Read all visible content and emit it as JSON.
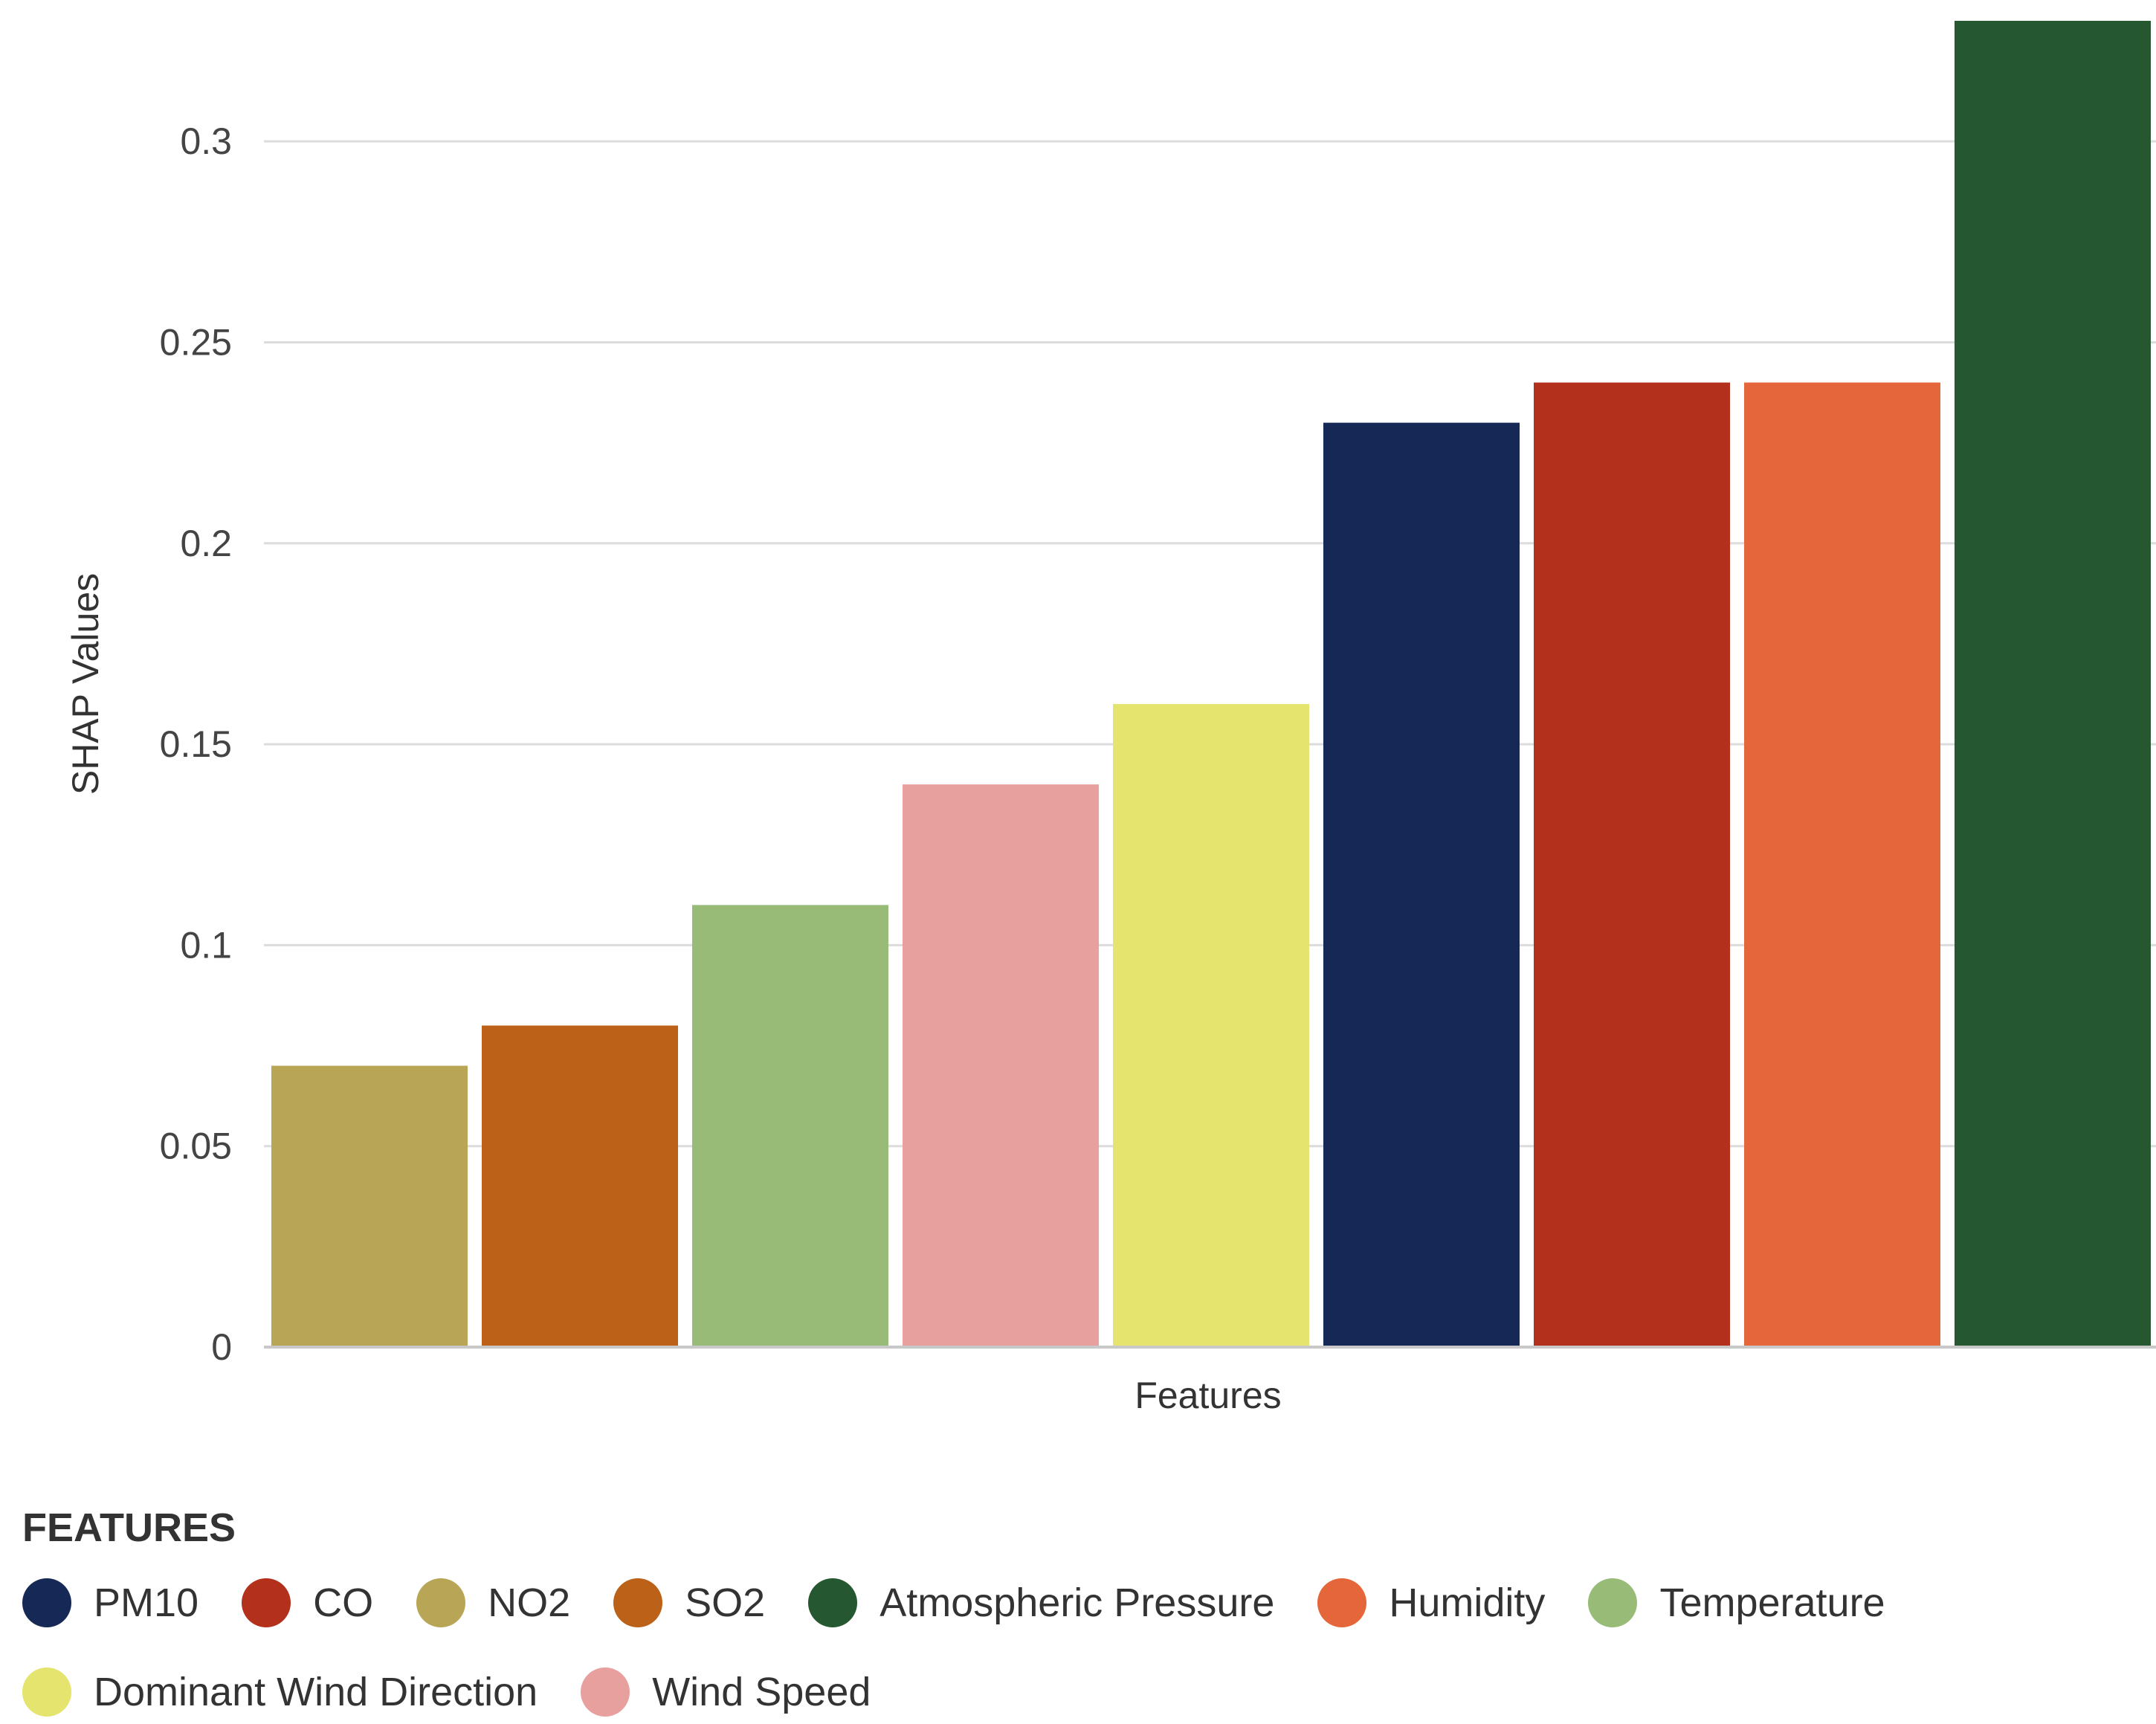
{
  "chart_data": {
    "type": "bar",
    "title": "",
    "xlabel": "Features",
    "ylabel": "SHAP Values",
    "ylim": [
      0,
      0.33
    ],
    "yticks": [
      0,
      0.05,
      0.1,
      0.15,
      0.2,
      0.25,
      0.3
    ],
    "ytick_labels": [
      "0",
      "0.05",
      "0.1",
      "0.15",
      "0.2",
      "0.25",
      "0.3"
    ],
    "grid": true,
    "bars": [
      {
        "name": "NO2",
        "value": 0.07,
        "color": "#b8a656"
      },
      {
        "name": "SO2",
        "value": 0.08,
        "color": "#bb6118"
      },
      {
        "name": "Temperature",
        "value": 0.11,
        "color": "#98bc78"
      },
      {
        "name": "Wind Speed",
        "value": 0.14,
        "color": "#e8a09e"
      },
      {
        "name": "Dominant Wind Direction",
        "value": 0.16,
        "color": "#e5e46e"
      },
      {
        "name": "PM10",
        "value": 0.23,
        "color": "#162856"
      },
      {
        "name": "CO",
        "value": 0.24,
        "color": "#b3301c"
      },
      {
        "name": "Humidity",
        "value": 0.24,
        "color": "#e5663a"
      },
      {
        "name": "Atmospheric Pressure",
        "value": 0.33,
        "color": "#255730"
      }
    ],
    "legend": {
      "title": "FEATURES",
      "placement": "bottom",
      "items": [
        {
          "label": "PM10",
          "color": "#162856"
        },
        {
          "label": "CO",
          "color": "#b3301c"
        },
        {
          "label": "NO2",
          "color": "#b8a656"
        },
        {
          "label": "SO2",
          "color": "#bb6118"
        },
        {
          "label": "Atmospheric Pressure",
          "color": "#255730"
        },
        {
          "label": "Humidity",
          "color": "#e5663a"
        },
        {
          "label": "Temperature",
          "color": "#98bc78"
        },
        {
          "label": "Dominant Wind Direction",
          "color": "#e5e46e"
        },
        {
          "label": "Wind Speed",
          "color": "#e8a09e"
        }
      ]
    }
  }
}
